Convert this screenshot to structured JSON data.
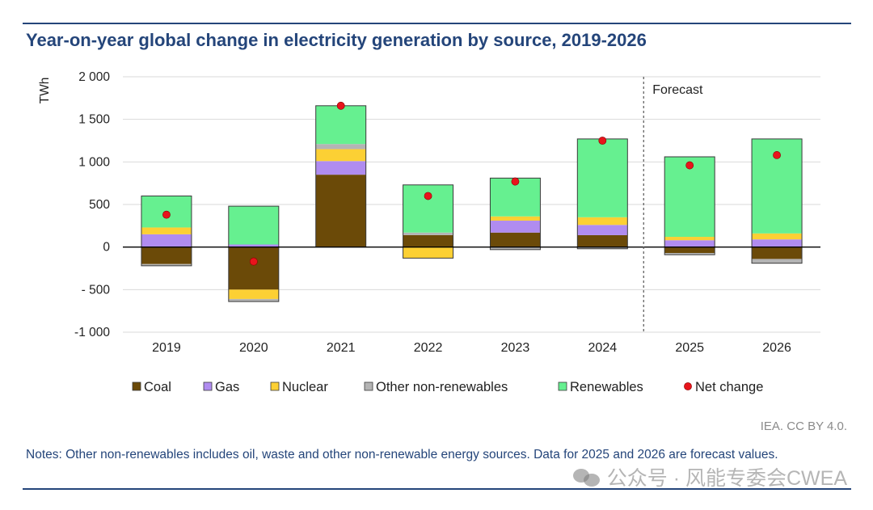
{
  "title": "Year-on-year global change in electricity generation by source, 2019-2026",
  "source": "IEA. CC BY 4.0.",
  "notes": "Notes: Other non-renewables includes oil, waste and other non-renewable energy sources. Data for 2025 and 2026 are forecast values.",
  "watermark": "公众号 · 风能专委会CWEA",
  "colors": {
    "coal": "#6b4a08",
    "gas": "#b08cf0",
    "nuclear": "#fcd034",
    "other": "#b4b4b4",
    "renewables": "#66f090",
    "net": "#e8141c",
    "title": "#24457a"
  },
  "chart_data": {
    "type": "bar",
    "stacked": true,
    "ylabel": "TWh",
    "ylim": [
      -1000,
      2000
    ],
    "yticks": [
      2000,
      1500,
      1000,
      500,
      0,
      -500,
      -1000
    ],
    "ytick_labels": [
      "2 000",
      "1 500",
      "1 000",
      "500",
      "0",
      "- 500",
      "-1 000"
    ],
    "categories": [
      "2019",
      "2020",
      "2021",
      "2022",
      "2023",
      "2024",
      "2025",
      "2026"
    ],
    "forecast_label": "Forecast",
    "forecast_from": "2025",
    "series": [
      {
        "key": "coal",
        "name": "Coal",
        "values": [
          -200,
          -500,
          850,
          140,
          170,
          140,
          -70,
          -140
        ]
      },
      {
        "key": "gas",
        "name": "Gas",
        "values": [
          150,
          30,
          160,
          0,
          140,
          120,
          80,
          90
        ]
      },
      {
        "key": "nuclear",
        "name": "Nuclear",
        "values": [
          80,
          -110,
          140,
          -130,
          50,
          90,
          40,
          70
        ]
      },
      {
        "key": "other",
        "name": "Other non-renewables",
        "values": [
          -20,
          -30,
          60,
          30,
          -30,
          -20,
          -20,
          -50
        ]
      },
      {
        "key": "renewables",
        "name": "Renewables",
        "values": [
          370,
          450,
          450,
          560,
          450,
          920,
          940,
          1110
        ]
      }
    ],
    "net_change": {
      "key": "net",
      "name": "Net change",
      "values": [
        380,
        -170,
        1660,
        600,
        770,
        1250,
        960,
        1080
      ]
    },
    "legend_position": "bottom"
  }
}
